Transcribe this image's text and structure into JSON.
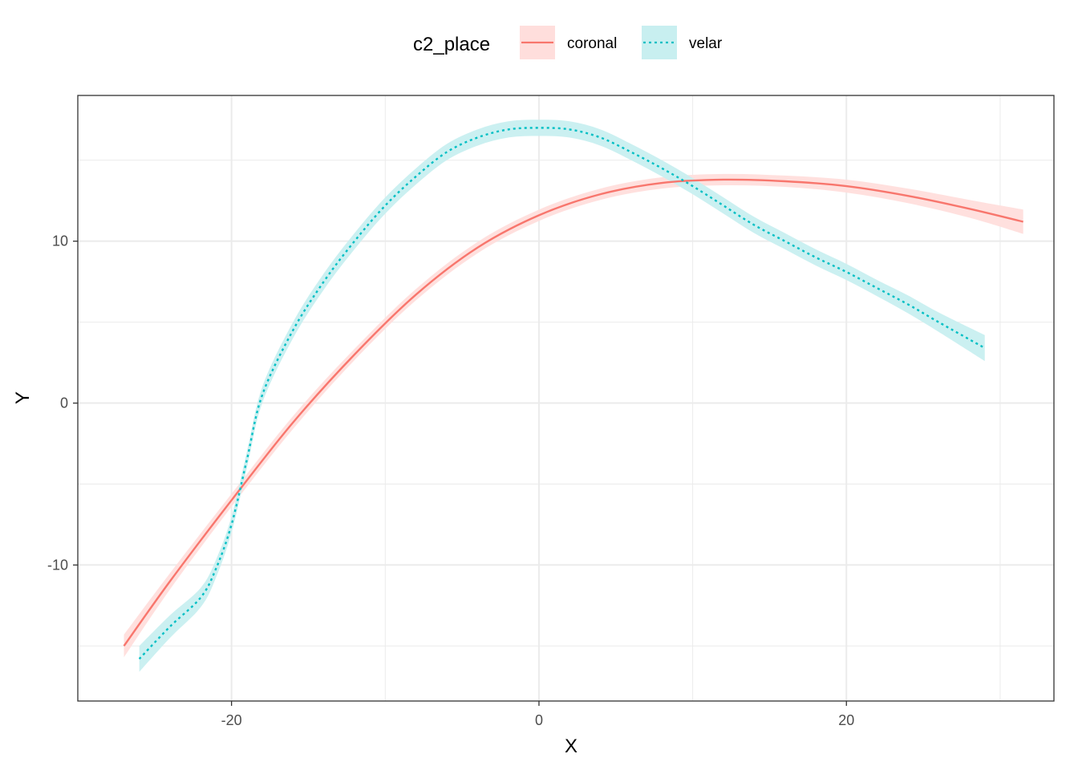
{
  "chart_data": {
    "type": "line",
    "xlabel": "X",
    "ylabel": "Y",
    "xlim": [
      -30,
      33.5
    ],
    "ylim": [
      -18.4,
      19
    ],
    "x_ticks": [
      -20,
      0,
      20
    ],
    "x_tick_labels": [
      "-20",
      "0",
      "20"
    ],
    "y_ticks": [
      -10,
      0,
      10
    ],
    "y_tick_labels": [
      "-10",
      "0",
      "10"
    ],
    "x_minor_ticks": [
      -30,
      -10,
      10,
      30
    ],
    "y_minor_ticks": [
      -15,
      -5,
      5,
      15
    ],
    "grid": true,
    "legend": {
      "title": "c2_place",
      "position": "top",
      "entries": [
        "coronal",
        "velar"
      ]
    },
    "series": [
      {
        "name": "coronal",
        "color": "#F8766D",
        "ribbon_color": "#FFDEDC",
        "line_style": "solid",
        "x": [
          -27,
          -24,
          -20,
          -16,
          -12,
          -8,
          -4,
          0,
          4,
          8,
          12,
          16,
          20,
          24,
          28,
          31.5
        ],
        "y": [
          -15.0,
          -11.0,
          -6.0,
          -1.2,
          3.0,
          6.7,
          9.6,
          11.6,
          12.9,
          13.6,
          13.8,
          13.7,
          13.4,
          12.8,
          12.0,
          11.2
        ],
        "band": [
          0.7,
          0.5,
          0.4,
          0.4,
          0.35,
          0.35,
          0.35,
          0.35,
          0.35,
          0.35,
          0.35,
          0.35,
          0.4,
          0.45,
          0.55,
          0.75
        ]
      },
      {
        "name": "velar",
        "color": "#00BFC4",
        "ribbon_color": "#C8EFF0",
        "line_style": "dotted",
        "x": [
          -26,
          -24,
          -22,
          -21,
          -20,
          -19,
          -18,
          -16,
          -14,
          -12,
          -10,
          -8,
          -6,
          -4,
          -2,
          0,
          2,
          4,
          6,
          8,
          10,
          12,
          14,
          16,
          18,
          20,
          22,
          24,
          26,
          29
        ],
        "y": [
          -15.8,
          -13.8,
          -12.0,
          -10.2,
          -7.5,
          -3.5,
          0.5,
          4.5,
          7.5,
          10.0,
          12.2,
          14.0,
          15.5,
          16.4,
          16.9,
          17.0,
          16.9,
          16.4,
          15.5,
          14.5,
          13.4,
          12.2,
          11.0,
          10.0,
          9.0,
          8.1,
          7.1,
          6.1,
          5.0,
          3.4
        ],
        "band": [
          0.8,
          0.7,
          0.6,
          0.55,
          0.5,
          0.5,
          0.5,
          0.5,
          0.5,
          0.5,
          0.5,
          0.5,
          0.5,
          0.5,
          0.5,
          0.5,
          0.5,
          0.5,
          0.5,
          0.5,
          0.5,
          0.5,
          0.5,
          0.5,
          0.5,
          0.5,
          0.5,
          0.55,
          0.6,
          0.8
        ]
      }
    ]
  }
}
